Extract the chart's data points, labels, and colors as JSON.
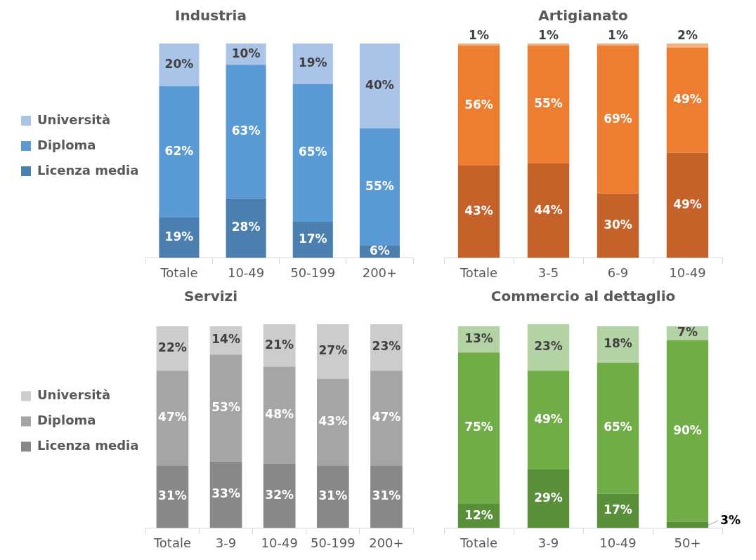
{
  "chart_data": [
    {
      "type": "bar",
      "title": "Industria",
      "stacked": true,
      "legend": "left",
      "tick_labels": "x",
      "grid": false,
      "categories": [
        "Totale",
        "10-49",
        "50-199",
        "200+"
      ],
      "series": [
        {
          "name": "Licenza media",
          "color": "#4a7fb0",
          "values": [
            19,
            28,
            17,
            6
          ],
          "value_labels": [
            "19%",
            "28%",
            "17%",
            "6%"
          ]
        },
        {
          "name": "Diploma",
          "color": "#5b9bd5",
          "values": [
            62,
            63,
            65,
            55
          ],
          "value_labels": [
            "62%",
            "63%",
            "65%",
            "55%"
          ]
        },
        {
          "name": "Università",
          "color": "#a9c4e6",
          "values": [
            20,
            10,
            19,
            40
          ],
          "value_labels": [
            "20%",
            "10%",
            "19%",
            "40%"
          ]
        }
      ]
    },
    {
      "type": "bar",
      "title": "Artigianato",
      "stacked": true,
      "tick_labels": "x",
      "grid": false,
      "categories": [
        "Totale",
        "3-5",
        "6-9",
        "10-49"
      ],
      "series": [
        {
          "color": "#c5622a",
          "values": [
            43,
            44,
            30,
            49
          ],
          "value_labels": [
            "43%",
            "44%",
            "30%",
            "49%"
          ]
        },
        {
          "color": "#ed7d31",
          "values": [
            56,
            55,
            69,
            49
          ],
          "value_labels": [
            "56%",
            "55%",
            "69%",
            "49%"
          ]
        },
        {
          "color": "#f4b183",
          "values": [
            1,
            1,
            1,
            2
          ],
          "value_labels": [
            "1%",
            "1%",
            "1%",
            "2%"
          ]
        }
      ]
    },
    {
      "type": "bar",
      "title": "Servizi",
      "stacked": true,
      "legend": "left",
      "tick_labels": "x",
      "grid": false,
      "categories": [
        "Totale",
        "3-9",
        "10-49",
        "50-199",
        "200+"
      ],
      "series": [
        {
          "name": "Licenza media",
          "color": "#888888",
          "values": [
            31,
            33,
            32,
            31,
            31
          ],
          "value_labels": [
            "31%",
            "33%",
            "32%",
            "31%",
            "31%"
          ]
        },
        {
          "name": "Diploma",
          "color": "#a5a5a5",
          "values": [
            47,
            53,
            48,
            43,
            47
          ],
          "value_labels": [
            "47%",
            "53%",
            "48%",
            "43%",
            "47%"
          ]
        },
        {
          "name": "Università",
          "color": "#cccccc",
          "values": [
            22,
            14,
            21,
            27,
            23
          ],
          "value_labels": [
            "22%",
            "14%",
            "21%",
            "27%",
            "23%"
          ]
        }
      ]
    },
    {
      "type": "bar",
      "title": "Commercio al dettaglio",
      "stacked": true,
      "tick_labels": "x",
      "grid": false,
      "categories": [
        "Totale",
        "3-9",
        "10-49",
        "50+"
      ],
      "series": [
        {
          "color": "#5a8f3a",
          "values": [
            12,
            29,
            17,
            3
          ],
          "value_labels": [
            "12%",
            "29%",
            "17%",
            "3%"
          ]
        },
        {
          "color": "#70ad47",
          "values": [
            75,
            49,
            65,
            90
          ],
          "value_labels": [
            "75%",
            "49%",
            "65%",
            "90%"
          ]
        },
        {
          "color": "#b4d3a5",
          "values": [
            13,
            23,
            18,
            7
          ],
          "value_labels": [
            "13%",
            "23%",
            "18%",
            "7%"
          ]
        }
      ]
    }
  ]
}
